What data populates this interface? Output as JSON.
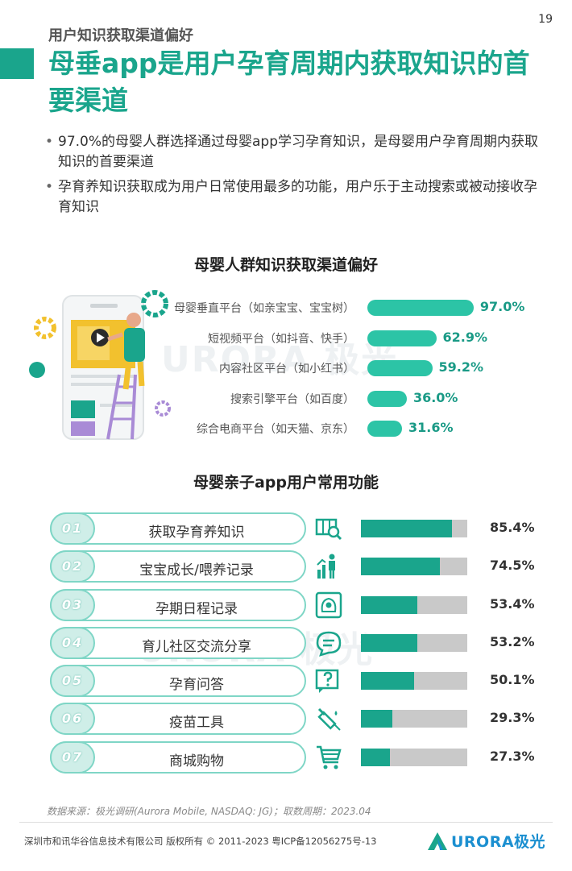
{
  "page_number": "19",
  "section_label": "用户知识获取渠道偏好",
  "title": "母垂app是用户孕育周期内获取知识的首要渠道",
  "bullets": [
    "97.0%的母婴人群选择通过母婴app学习孕育知识，是母婴用户孕育周期内获取知识的首要渠道",
    "孕育养知识获取成为用户日常使用最多的功能，用户乐于主动搜索或被动接收孕育知识"
  ],
  "watermark": "URORA 极光",
  "chart_data": [
    {
      "type": "bar",
      "orientation": "horizontal",
      "title": "母婴人群知识获取渠道偏好",
      "categories": [
        "母婴垂直平台（如亲宝宝、宝宝树）",
        "短视频平台（如抖音、快手）",
        "内容社区平台（如小红书）",
        "搜索引擎平台（如百度）",
        "综合电商平台（如天猫、京东）"
      ],
      "values": [
        97.0,
        62.9,
        59.2,
        36.0,
        31.6
      ],
      "value_labels": [
        "97.0%",
        "62.9%",
        "59.2%",
        "36.0%",
        "31.6%"
      ],
      "unit": "%",
      "bar_color": "#2cc4a6"
    },
    {
      "type": "bar",
      "orientation": "horizontal",
      "title": "母婴亲子app用户常用功能",
      "items": [
        {
          "num": "01",
          "label": "获取孕育养知识",
          "icon": "map-search-icon",
          "value": 85.4,
          "value_label": "85.4%"
        },
        {
          "num": "02",
          "label": "宝宝成长/喂养记录",
          "icon": "growth-chart-icon",
          "value": 74.5,
          "value_label": "74.5%"
        },
        {
          "num": "03",
          "label": "孕期日程记录",
          "icon": "ultrasound-icon",
          "value": 53.4,
          "value_label": "53.4%"
        },
        {
          "num": "04",
          "label": "育儿社区交流分享",
          "icon": "chat-bubble-icon",
          "value": 53.2,
          "value_label": "53.2%"
        },
        {
          "num": "05",
          "label": "孕育问答",
          "icon": "question-icon",
          "value": 50.1,
          "value_label": "50.1%"
        },
        {
          "num": "06",
          "label": "疫苗工具",
          "icon": "syringe-icon",
          "value": 29.3,
          "value_label": "29.3%"
        },
        {
          "num": "07",
          "label": "商城购物",
          "icon": "shopping-cart-icon",
          "value": 27.3,
          "value_label": "27.3%"
        }
      ],
      "fill_color": "#1aa58c",
      "track_color": "#c9c9c9"
    }
  ],
  "source": "数据来源：极光调研(Aurora Mobile, NASDAQ: JG)；取数周期：2023.04",
  "copyright": "深圳市和讯华谷信息技术有限公司 版权所有 © 2011-2023 粤ICP备12056275号-13",
  "logo_text": "URORA极光"
}
